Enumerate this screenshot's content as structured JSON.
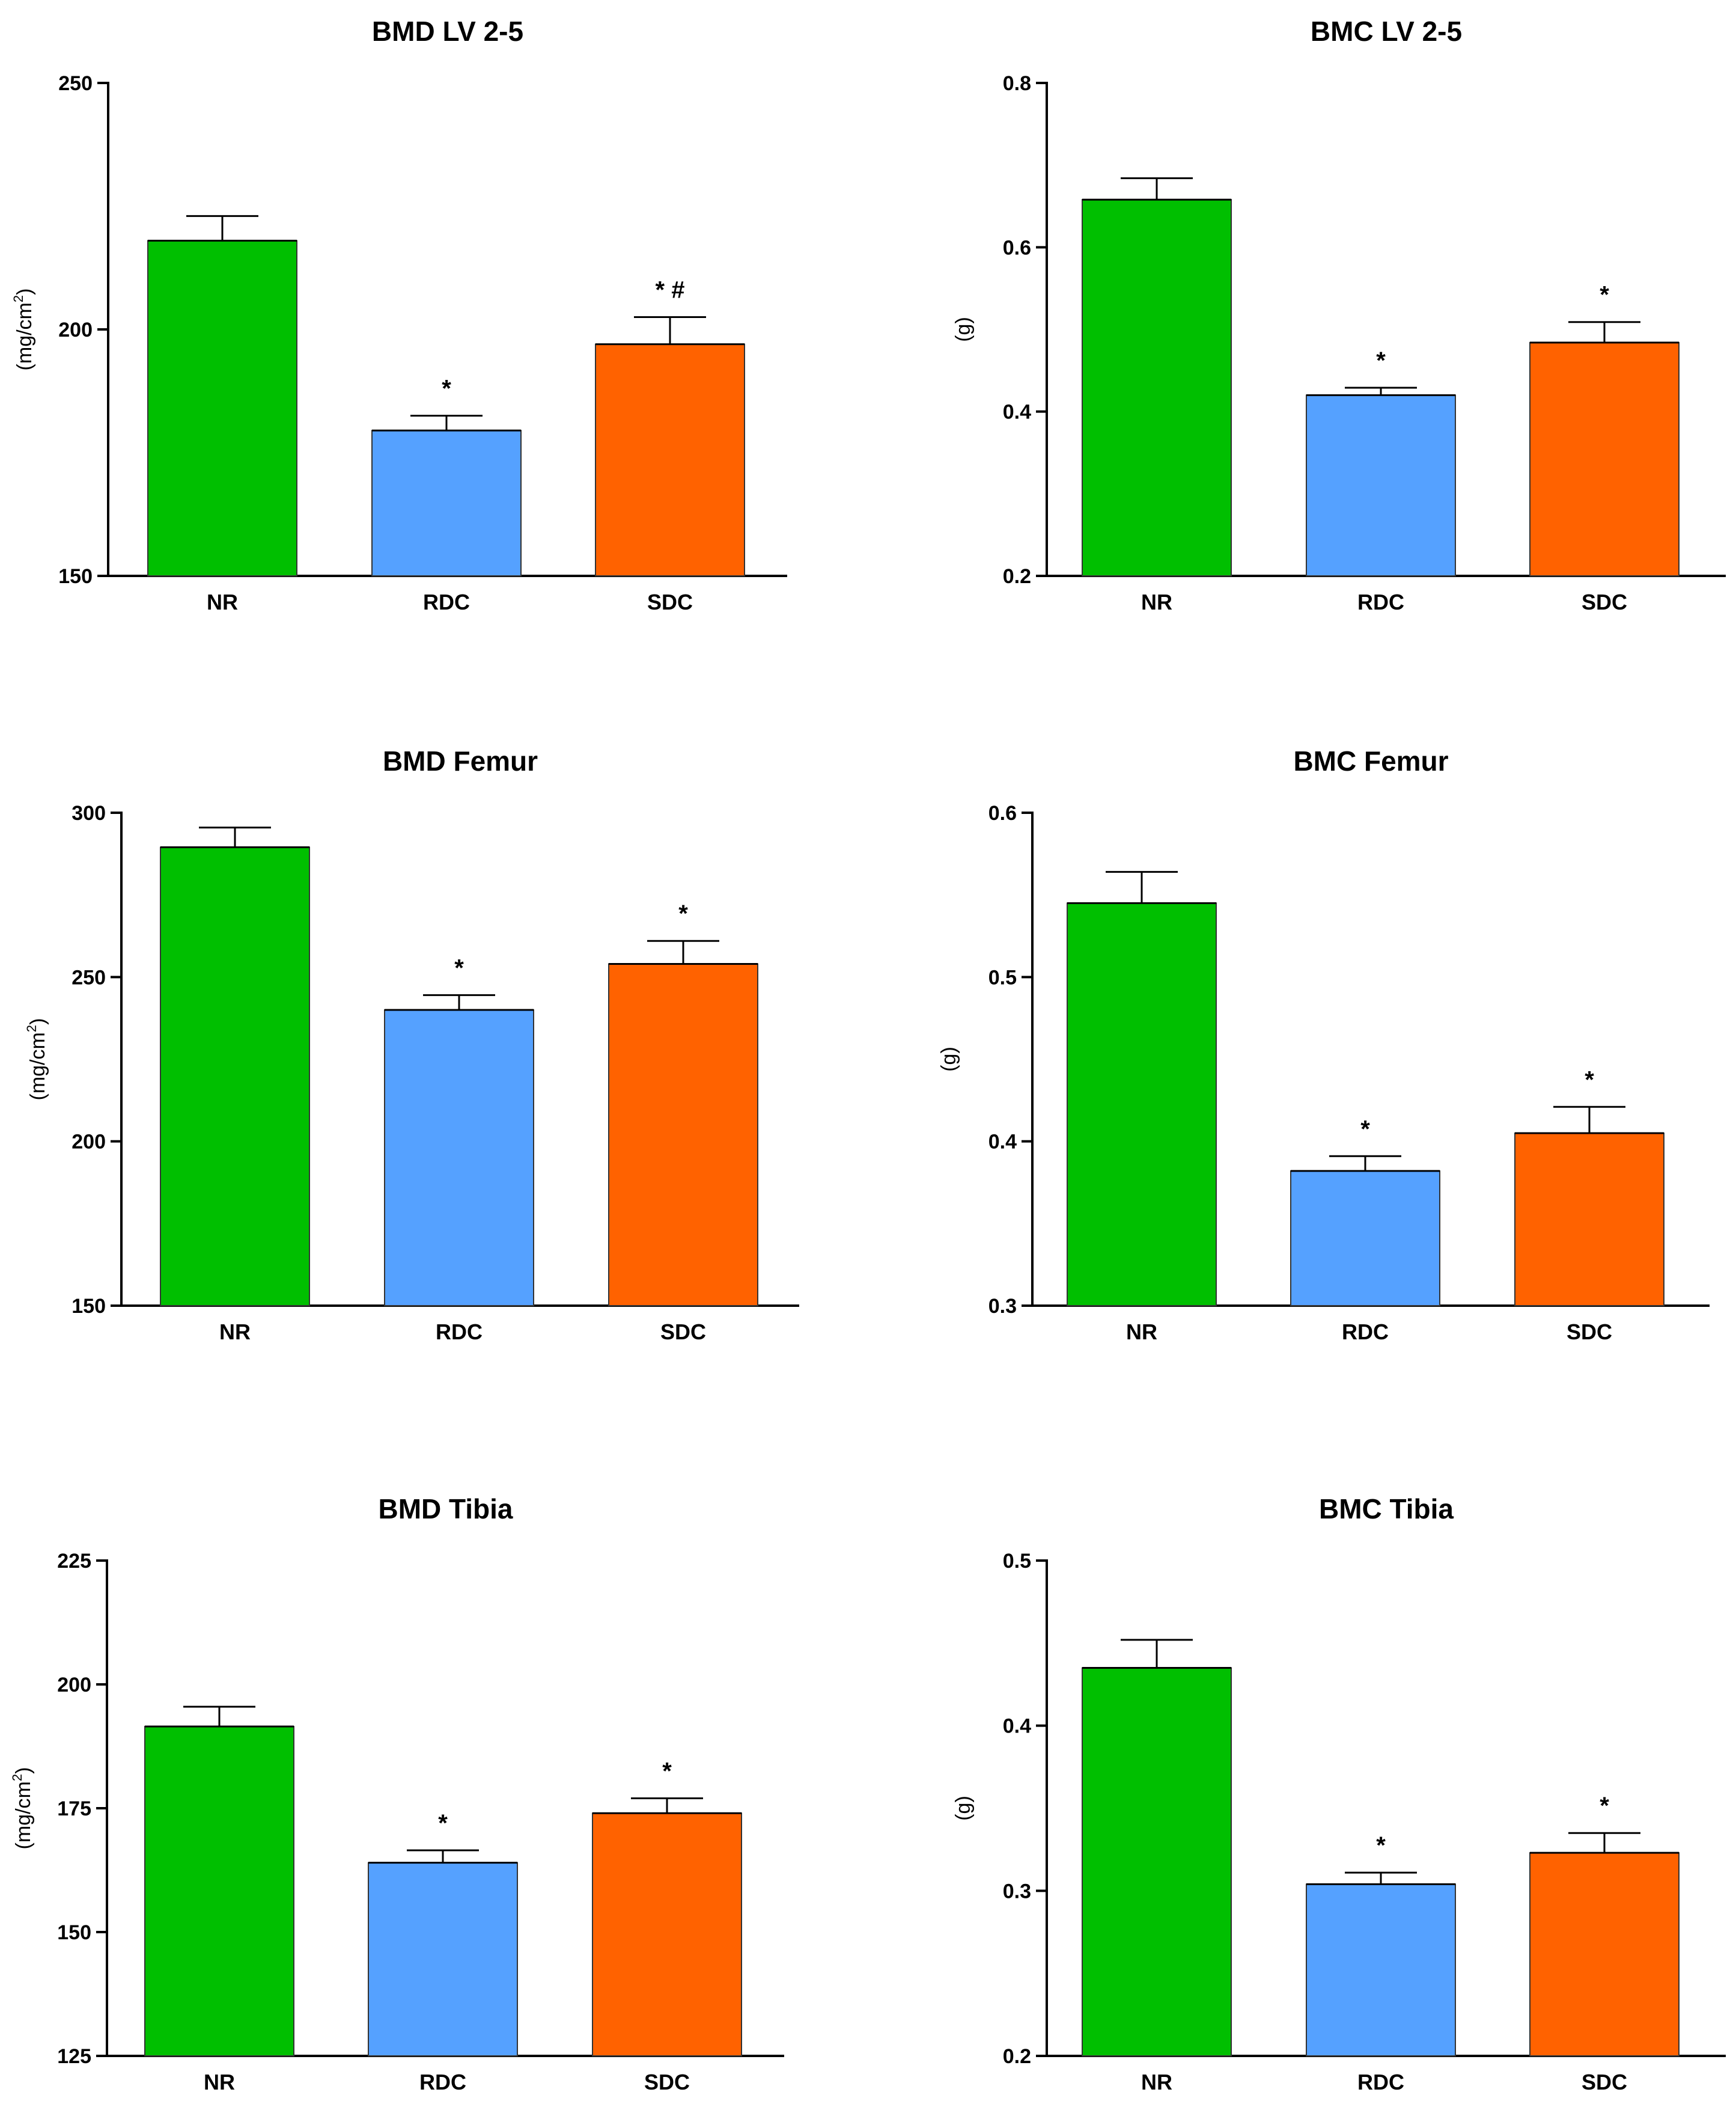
{
  "colors": {
    "NR": "#00bf00",
    "RDC": "#55a1ff",
    "SDC": "#ff6200",
    "axis": "#000000",
    "bar_border": "#333333"
  },
  "chart_data": [
    {
      "type": "bar",
      "title": "BMD LV 2-5",
      "ylabel": "(mg/cm",
      "ylabel_sup": "2",
      "ylabel_close": ")",
      "ylim": [
        150,
        250
      ],
      "yticks": [
        "150",
        "200",
        "250"
      ],
      "categories": [
        "NR",
        "RDC",
        "SDC"
      ],
      "values": [
        218,
        179.5,
        197
      ],
      "errors": [
        5,
        3,
        5.5
      ],
      "annotations": [
        "",
        "*",
        "*  #"
      ]
    },
    {
      "type": "bar",
      "title": "BMC LV 2-5",
      "ylabel": "(g)",
      "ylabel_sup": "",
      "ylabel_close": "",
      "ylim": [
        0.2,
        0.8
      ],
      "yticks": [
        "0.2",
        "0.4",
        "0.6",
        "0.8"
      ],
      "categories": [
        "NR",
        "RDC",
        "SDC"
      ],
      "values": [
        0.658,
        0.42,
        0.484
      ],
      "errors": [
        0.026,
        0.009,
        0.025
      ],
      "annotations": [
        "",
        "*",
        "*"
      ]
    },
    {
      "type": "bar",
      "title": "BMD Femur",
      "ylabel": "(mg/cm",
      "ylabel_sup": "2",
      "ylabel_close": ")",
      "ylim": [
        150,
        300
      ],
      "yticks": [
        "150",
        "200",
        "250",
        "300"
      ],
      "categories": [
        "NR",
        "RDC",
        "SDC"
      ],
      "values": [
        289.5,
        240,
        254
      ],
      "errors": [
        6,
        4.5,
        7
      ],
      "annotations": [
        "",
        "*",
        "*"
      ]
    },
    {
      "type": "bar",
      "title": "BMC Femur",
      "ylabel": "(g)",
      "ylabel_sup": "",
      "ylabel_close": "",
      "ylim": [
        0.3,
        0.6
      ],
      "yticks": [
        "0.3",
        "0.4",
        "0.5",
        "0.6"
      ],
      "categories": [
        "NR",
        "RDC",
        "SDC"
      ],
      "values": [
        0.545,
        0.382,
        0.405
      ],
      "errors": [
        0.019,
        0.009,
        0.016
      ],
      "annotations": [
        "",
        "*",
        "*"
      ]
    },
    {
      "type": "bar",
      "title": "BMD Tibia",
      "ylabel": "(mg/cm",
      "ylabel_sup": "2",
      "ylabel_close": ")",
      "ylim": [
        125,
        225
      ],
      "yticks": [
        "125",
        "150",
        "175",
        "200",
        "225"
      ],
      "categories": [
        "NR",
        "RDC",
        "SDC"
      ],
      "values": [
        191.5,
        164,
        174
      ],
      "errors": [
        4,
        2.5,
        3
      ],
      "annotations": [
        "",
        "*",
        "*"
      ]
    },
    {
      "type": "bar",
      "title": "BMC Tibia",
      "ylabel": "(g)",
      "ylabel_sup": "",
      "ylabel_close": "",
      "ylim": [
        0.2,
        0.5
      ],
      "yticks": [
        "0.2",
        "0.3",
        "0.4",
        "0.5"
      ],
      "categories": [
        "NR",
        "RDC",
        "SDC"
      ],
      "values": [
        0.435,
        0.304,
        0.323
      ],
      "errors": [
        0.017,
        0.007,
        0.012
      ],
      "annotations": [
        "",
        "*",
        "*"
      ]
    }
  ]
}
